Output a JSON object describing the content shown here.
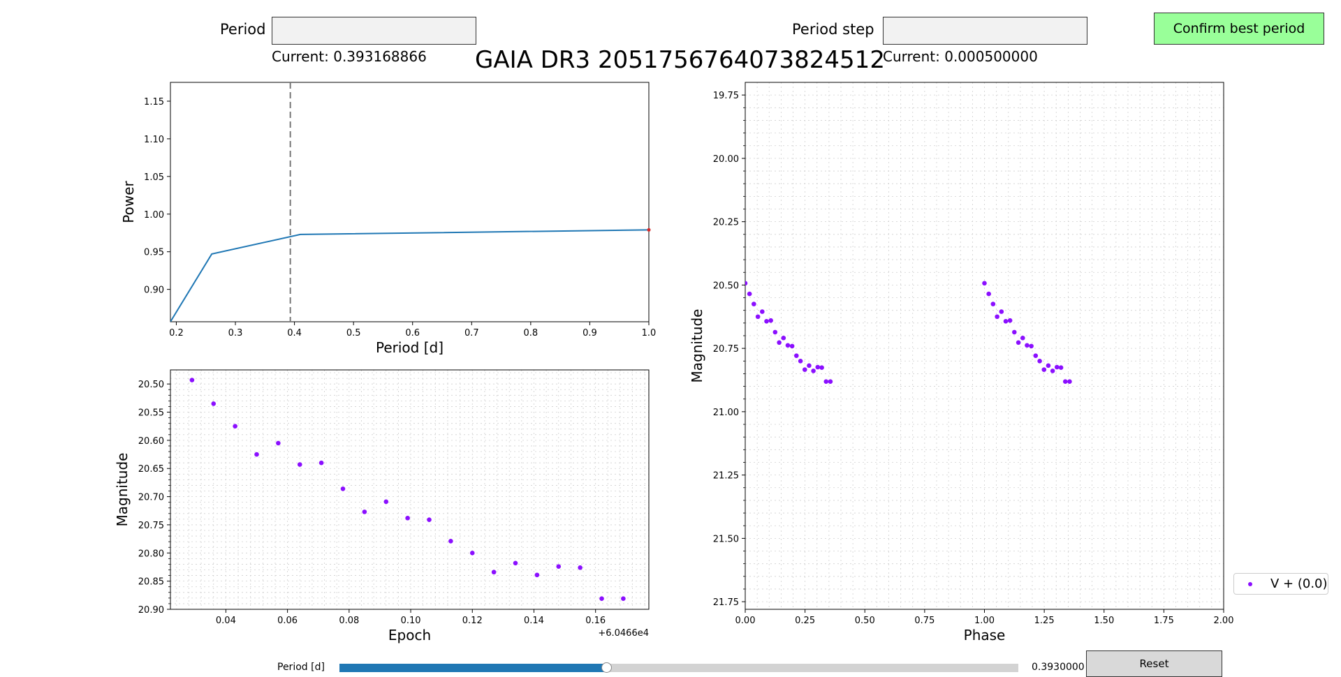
{
  "controls": {
    "period_label": "Period",
    "period_value": "",
    "period_current": "Current: 0.393168866",
    "step_label": "Period step",
    "step_value": "",
    "step_current": "Current: 0.000500000",
    "confirm_label": "Confirm best period",
    "reset_label": "Reset",
    "slider_label": "Period [d]",
    "slider_value_text": "0.3930000",
    "slider_fraction": 0.393
  },
  "title": "GAIA DR3 2051756764073824512",
  "colors": {
    "periodogram_line": "#1f77b4",
    "points": "#8b0fff",
    "marker_line": "#777777",
    "confirm_button": "#99ff99",
    "slider_fill": "#1f77b4"
  },
  "chart_data": [
    {
      "type": "line",
      "name": "periodogram",
      "xlabel": "Period [d]",
      "ylabel": "Power",
      "xlim": [
        0.19,
        1.0
      ],
      "ylim": [
        0.857,
        1.175
      ],
      "xticks": [
        0.2,
        0.3,
        0.4,
        0.5,
        0.6,
        0.7,
        0.8,
        0.9,
        1.0
      ],
      "xtick_labels": [
        "0.2",
        "0.3",
        "0.4",
        "0.5",
        "0.6",
        "0.7",
        "0.8",
        "0.9",
        "1.0"
      ],
      "yticks": [
        0.9,
        0.95,
        1.0,
        1.05,
        1.1,
        1.15
      ],
      "ytick_labels": [
        "0.90",
        "0.95",
        "1.00",
        "1.05",
        "1.10",
        "1.15"
      ],
      "grid": false,
      "vline_x": 0.393,
      "x": [
        0.19,
        0.26,
        0.41,
        1.0
      ],
      "y": [
        0.857,
        0.947,
        0.973,
        0.979
      ]
    },
    {
      "type": "scatter",
      "name": "lightcurve",
      "xlabel": "Epoch",
      "ylabel": "Magnitude",
      "offset_text": "+6.0466e4",
      "xlim": [
        0.022,
        0.1773
      ],
      "ylim": [
        20.9,
        20.475
      ],
      "y_inverted": true,
      "xticks": [
        0.04,
        0.06,
        0.08,
        0.1,
        0.12,
        0.14,
        0.16
      ],
      "xtick_labels": [
        "0.04",
        "0.06",
        "0.08",
        "0.10",
        "0.12",
        "0.14",
        "0.16"
      ],
      "yticks": [
        20.5,
        20.55,
        20.6,
        20.65,
        20.7,
        20.75,
        20.8,
        20.85,
        20.9
      ],
      "ytick_labels": [
        "20.50",
        "20.55",
        "20.60",
        "20.65",
        "20.70",
        "20.75",
        "20.80",
        "20.85",
        "20.90"
      ],
      "grid": true,
      "x": [
        0.029,
        0.036,
        0.043,
        0.05,
        0.057,
        0.064,
        0.071,
        0.078,
        0.085,
        0.092,
        0.099,
        0.106,
        0.113,
        0.12,
        0.127,
        0.134,
        0.141,
        0.148,
        0.155,
        0.162,
        0.169
      ],
      "y": [
        20.493,
        20.535,
        20.575,
        20.625,
        20.605,
        20.643,
        20.64,
        20.686,
        20.727,
        20.709,
        20.738,
        20.741,
        20.779,
        20.8,
        20.834,
        20.818,
        20.839,
        20.824,
        20.826,
        20.881,
        20.881
      ]
    },
    {
      "type": "scatter",
      "name": "phased",
      "xlabel": "Phase",
      "ylabel": "Magnitude",
      "xlim": [
        0.0,
        2.0
      ],
      "ylim": [
        21.78,
        19.7
      ],
      "y_inverted": true,
      "xticks": [
        0.0,
        0.25,
        0.5,
        0.75,
        1.0,
        1.25,
        1.5,
        1.75,
        2.0
      ],
      "xtick_labels": [
        "0.00",
        "0.25",
        "0.50",
        "0.75",
        "1.00",
        "1.25",
        "1.50",
        "1.75",
        "2.00"
      ],
      "yticks": [
        19.75,
        20.0,
        20.25,
        20.5,
        20.75,
        21.0,
        21.25,
        21.5,
        21.75
      ],
      "ytick_labels": [
        "19.75",
        "20.00",
        "20.25",
        "20.50",
        "20.75",
        "21.00",
        "21.25",
        "21.50",
        "21.75"
      ],
      "grid": true,
      "legend": "V + (0.0)",
      "legend_position": "outside-right",
      "x": [
        0.0,
        0.018,
        0.036,
        0.053,
        0.071,
        0.089,
        0.107,
        0.125,
        0.142,
        0.16,
        0.178,
        0.196,
        0.214,
        0.231,
        0.249,
        0.267,
        0.285,
        0.303,
        0.32,
        0.338,
        0.356
      ],
      "y": [
        20.493,
        20.535,
        20.575,
        20.625,
        20.605,
        20.643,
        20.64,
        20.686,
        20.727,
        20.709,
        20.738,
        20.741,
        20.779,
        20.8,
        20.834,
        20.818,
        20.839,
        20.824,
        20.826,
        20.881,
        20.881
      ],
      "repeat_offset": 1.0
    }
  ]
}
